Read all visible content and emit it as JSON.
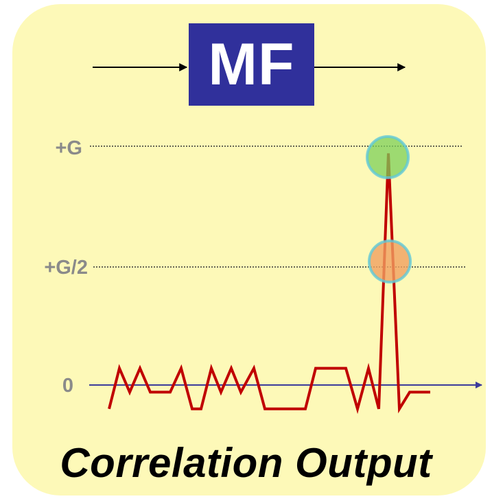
{
  "colors": {
    "panel_fill": "#fdf9b8",
    "box_fill": "#30309b",
    "signal": "#c00000",
    "axis": "#3b3b9b",
    "label_gray": "#8a8a8a",
    "marker_top": "#7ccf5a",
    "marker_mid": "#f0a060",
    "marker_ring": "#5fc8d8"
  },
  "block": {
    "label": "MF"
  },
  "levels": {
    "top": "+G",
    "mid": "+G/2",
    "zero": "0"
  },
  "caption": "Correlation Output",
  "chart_data": {
    "type": "line",
    "title": "",
    "xlabel": "",
    "ylabel": "",
    "y_ticks": [
      "0",
      "+G/2",
      "+G"
    ],
    "series": [
      {
        "values_in_G_units": [
          -0.1,
          0.07,
          -0.03,
          0.07,
          -0.03,
          -0.03,
          0.07,
          -0.1,
          -0.1,
          0.07,
          -0.03,
          0.07,
          -0.03,
          0.07,
          -0.1,
          -0.1,
          -0.1,
          0.07,
          0.07,
          0.07,
          -0.1,
          0.07,
          -0.1,
          0.97,
          -0.1,
          -0.03,
          -0.03
        ]
      }
    ],
    "highlighted_points": [
      "+G",
      "+G/2"
    ],
    "grid": "dotted reference lines at +G and +G/2"
  }
}
